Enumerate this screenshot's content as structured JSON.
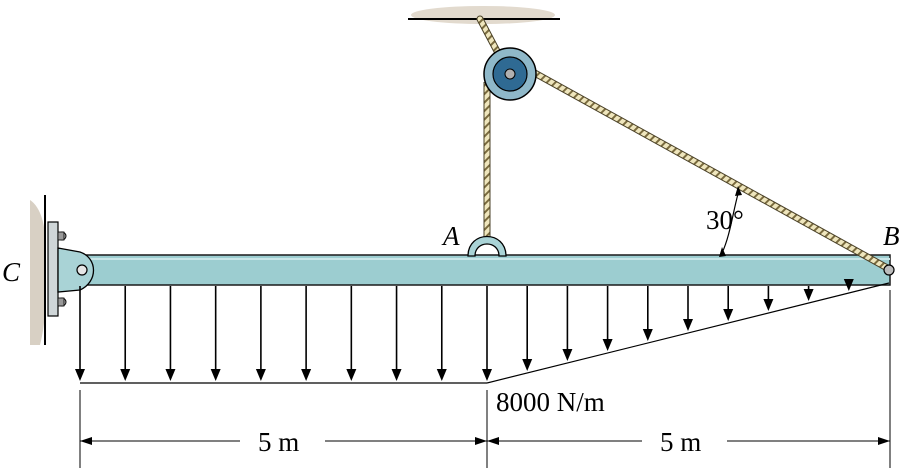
{
  "labels": {
    "point_c": "C",
    "point_a": "A",
    "point_b": "B",
    "angle": "30°",
    "load_intensity": "8000 N/m",
    "span_left": "5 m",
    "span_right": "5 m"
  },
  "colors": {
    "beam_fill": "#9ccdd0",
    "beam_stroke": "#1a1a1a",
    "pulley_outer": "#8fb8c9",
    "pulley_inner": "#2f6a93",
    "rope": "#e8dfb4",
    "rope_stroke": "#5a5030",
    "wall_shadow": "#d8d0c4",
    "plate": "#cfd6d8"
  },
  "load": {
    "uniform_arrow_count": 10,
    "triangular_arrow_count": 9
  }
}
